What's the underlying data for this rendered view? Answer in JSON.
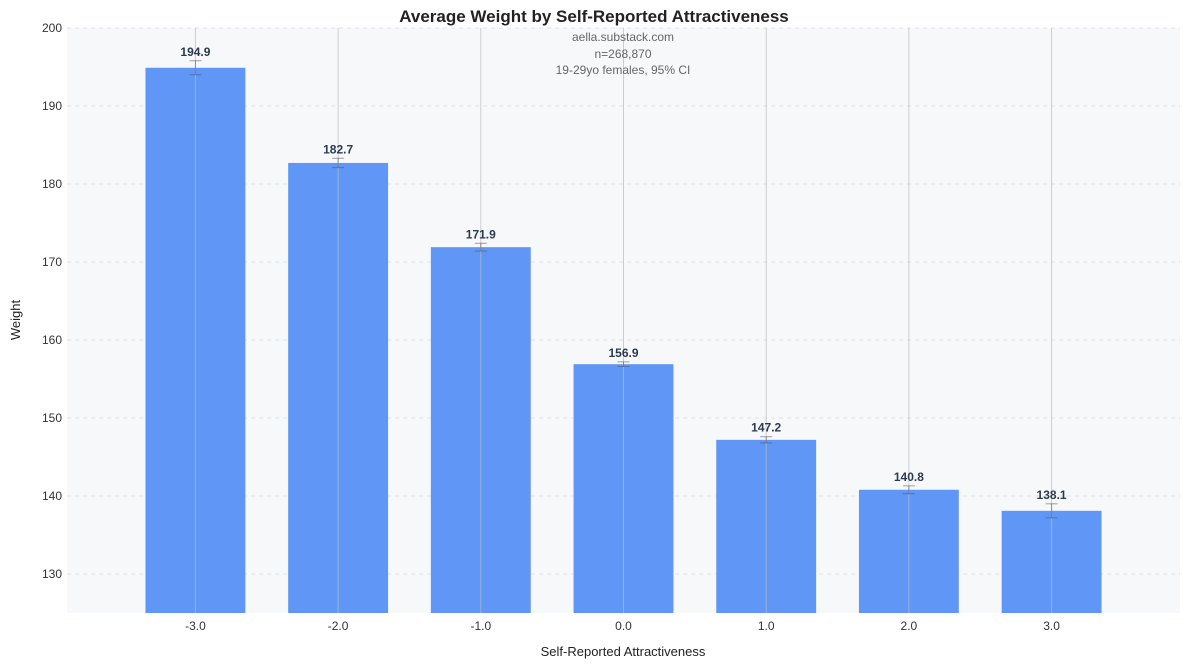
{
  "chart_data": {
    "type": "bar",
    "title": "Average Weight by Self-Reported Attractiveness",
    "annotation": [
      "aella.substack.com",
      "n=268,870",
      "19-29yo females, 95% CI"
    ],
    "xlabel": "Self-Reported Attractiveness",
    "ylabel": "Weight",
    "categories": [
      "-3.0",
      "-2.0",
      "-1.0",
      "0.0",
      "1.0",
      "2.0",
      "3.0"
    ],
    "x_values": [
      -3,
      -2,
      -1,
      0,
      1,
      2,
      3
    ],
    "values": [
      194.9,
      182.7,
      171.9,
      156.9,
      147.2,
      140.8,
      138.1
    ],
    "value_labels": [
      "194.9",
      "182.7",
      "171.9",
      "156.9",
      "147.2",
      "140.8",
      "138.1"
    ],
    "ci": [
      0.9,
      0.6,
      0.5,
      0.3,
      0.4,
      0.5,
      0.9
    ],
    "ylim": [
      125,
      200
    ],
    "xlim": [
      -3.9,
      3.9
    ],
    "yticks": [
      130,
      140,
      150,
      160,
      170,
      180,
      190,
      200
    ],
    "grid": true,
    "bar_color": "#6096f6",
    "background": "#f7f8fa"
  }
}
